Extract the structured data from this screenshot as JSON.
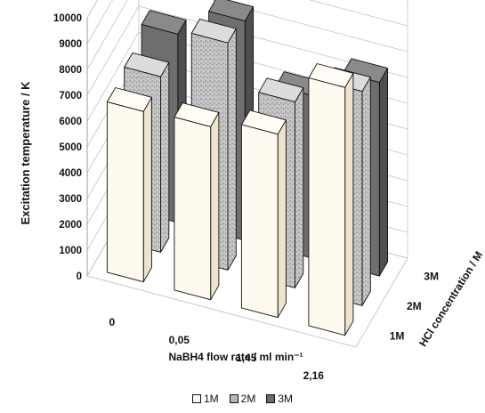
{
  "chart_data": {
    "type": "bar",
    "subtype": "3d-column",
    "ylabel": "Excitation temperature / K",
    "xlabel": "NaBH4 flow rate / ml min⁻¹",
    "zlabel": "HCl concentration / M",
    "ylim": [
      0,
      10000
    ],
    "yticks": [
      "0",
      "1000",
      "2000",
      "3000",
      "4000",
      "5000",
      "6000",
      "7000",
      "8000",
      "9000",
      "10000"
    ],
    "categories": [
      "0",
      "0,05",
      "1,45",
      "2,16"
    ],
    "series": [
      {
        "name": "1M",
        "values": [
          6600,
          6700,
          7100,
          9600
        ],
        "color": "#fffaf0"
      },
      {
        "name": "2M",
        "values": [
          6800,
          8800,
          7200,
          8300
        ],
        "color": "#b7b7b7"
      },
      {
        "name": "3M",
        "values": [
          7300,
          8500,
          6300,
          7500
        ],
        "color": "#6b6b6b"
      }
    ],
    "depth_labels": [
      "1M",
      "2M",
      "3M"
    ],
    "grid": true,
    "legend_position": "bottom"
  }
}
